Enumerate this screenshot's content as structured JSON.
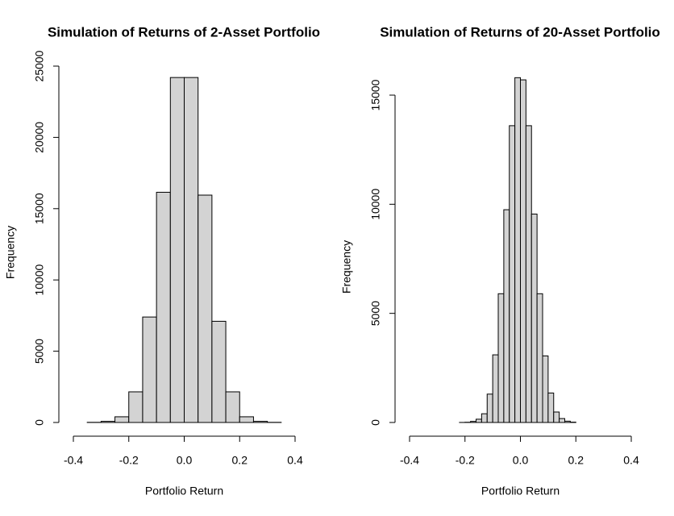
{
  "chart_data": [
    {
      "type": "histogram",
      "title": "Simulation of Returns of 2-Asset Portfolio",
      "x_label": "Portfolio Return",
      "y_label": "Frequency",
      "bins": [
        -0.35,
        -0.3,
        -0.25,
        -0.2,
        -0.15,
        -0.1,
        -0.05,
        0,
        0.05,
        0.1,
        0.15,
        0.2,
        0.25,
        0.3,
        0.35
      ],
      "values": [
        10,
        80,
        400,
        2150,
        7400,
        16150,
        24200,
        24200,
        15950,
        7100,
        2150,
        400,
        80,
        10
      ],
      "color": "#d3d3d3",
      "xlim": [
        -0.4,
        0.4
      ],
      "xticks": [
        -0.4,
        -0.2,
        {
          "value": 0,
          "label": "0.0"
        },
        0.2,
        0.4
      ],
      "ylim": [
        0,
        25000
      ],
      "yticks": [
        0,
        5000,
        10000,
        15000,
        20000,
        25000
      ]
    },
    {
      "type": "histogram",
      "title": "Simulation of Returns of 20-Asset Portfolio",
      "x_label": "Portfolio Return",
      "y_label": "Frequency",
      "bins": [
        -0.22,
        -0.2,
        -0.18,
        -0.16,
        -0.14,
        -0.12,
        -0.1,
        -0.08,
        -0.06,
        -0.04,
        -0.02,
        0,
        0.02,
        0.04,
        0.06,
        0.08,
        0.1,
        0.12,
        0.14,
        0.16,
        0.18,
        0.2
      ],
      "values": [
        2,
        10,
        50,
        150,
        400,
        1300,
        3100,
        5900,
        9750,
        13600,
        15800,
        15700,
        13600,
        9550,
        5900,
        3050,
        1350,
        480,
        180,
        60,
        15
      ],
      "color": "#d3d3d3",
      "xlim": [
        -0.4,
        0.4
      ],
      "xticks": [
        -0.4,
        -0.2,
        {
          "value": 0,
          "label": "0.0"
        },
        0.2,
        0.4
      ],
      "ylim": [
        0,
        15000
      ],
      "yticks": [
        0,
        5000,
        10000,
        15000
      ]
    }
  ]
}
